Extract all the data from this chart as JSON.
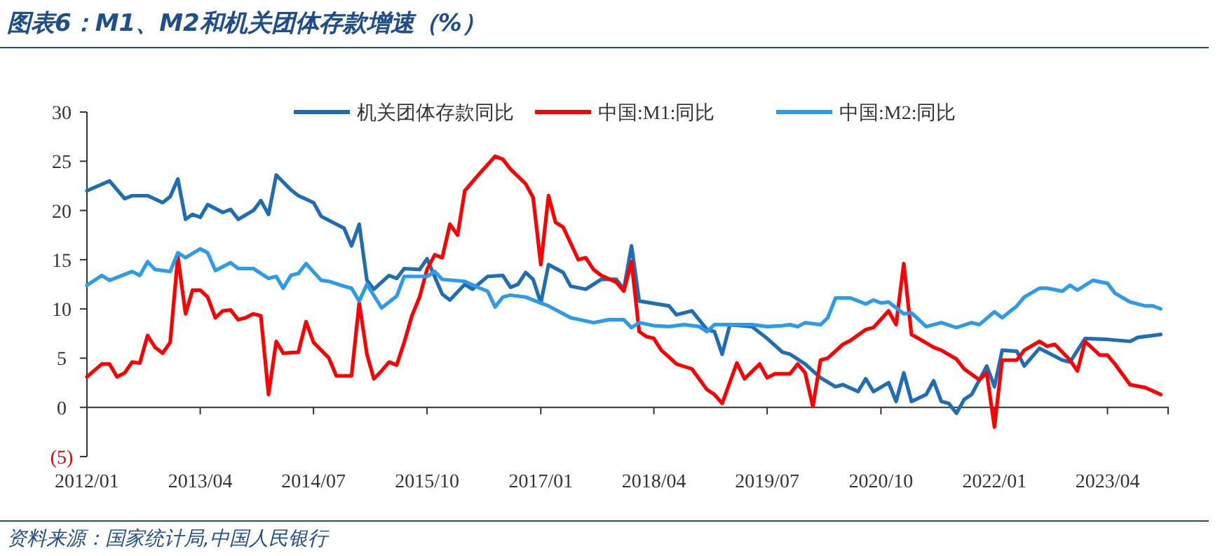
{
  "chart_data": {
    "type": "line",
    "title": "图表6：M1、M2和机关团体存款增速（%）",
    "annotations": [
      "资料来源：国家统计局,中国人民银行"
    ],
    "xlim": [
      "2012-01",
      "2023-12"
    ],
    "xticks": [
      {
        "value": "2012-01",
        "label": "2012/01"
      },
      {
        "value": "2013-04",
        "label": "2013/04"
      },
      {
        "value": "2014-07",
        "label": "2014/07"
      },
      {
        "value": "2015-10",
        "label": "2015/10"
      },
      {
        "value": "2017-01",
        "label": "2017/01"
      },
      {
        "value": "2018-04",
        "label": "2018/04"
      },
      {
        "value": "2019-07",
        "label": "2019/07"
      },
      {
        "value": "2020-10",
        "label": "2020/10"
      },
      {
        "value": "2022-01",
        "label": "2022/01"
      },
      {
        "value": "2023-04",
        "label": "2023/04"
      }
    ],
    "ylim": [
      -5,
      30
    ],
    "yticks": [
      {
        "value": -5,
        "label": "(5)"
      },
      0,
      5,
      10,
      15,
      20,
      25,
      30
    ],
    "legend": "top",
    "grid": false,
    "marker": "none",
    "line_style": "solid",
    "series": [
      {
        "name": "机关团体存款同比",
        "color": "#1f6db4",
        "x": [
          "2012-01",
          "2012-04",
          "2012-06",
          "2012-07",
          "2012-09",
          "2012-11",
          "2012-12",
          "2013-01",
          "2013-02",
          "2013-03",
          "2013-04",
          "2013-05",
          "2013-07",
          "2013-08",
          "2013-09",
          "2013-11",
          "2013-12",
          "2014-01",
          "2014-02",
          "2014-04",
          "2014-05",
          "2014-07",
          "2014-08",
          "2014-11",
          "2014-12",
          "2015-01",
          "2015-02",
          "2015-03",
          "2015-05",
          "2015-06",
          "2015-07",
          "2015-09",
          "2015-10",
          "2015-12",
          "2016-01",
          "2016-03",
          "2016-04",
          "2016-06",
          "2016-08",
          "2016-09",
          "2016-10",
          "2016-11",
          "2016-12",
          "2017-01",
          "2017-02",
          "2017-04",
          "2017-05",
          "2017-07",
          "2017-09",
          "2017-11",
          "2017-12",
          "2018-01",
          "2018-02",
          "2018-06",
          "2018-07",
          "2018-09",
          "2018-11",
          "2018-12",
          "2019-01",
          "2019-02",
          "2019-05",
          "2019-07",
          "2019-09",
          "2019-10",
          "2019-12",
          "2020-02",
          "2020-04",
          "2020-05",
          "2020-07",
          "2020-08",
          "2020-09",
          "2020-11",
          "2020-12",
          "2021-01",
          "2021-02",
          "2021-04",
          "2021-05",
          "2021-06",
          "2021-07",
          "2021-08",
          "2021-09",
          "2021-10",
          "2021-12",
          "2022-01",
          "2022-02",
          "2022-04",
          "2022-05",
          "2022-07",
          "2022-10",
          "2022-11",
          "2023-01",
          "2023-04",
          "2023-07",
          "2023-08",
          "2023-11"
        ],
        "values": [
          22.0,
          23.0,
          21.2,
          21.5,
          21.5,
          20.8,
          21.4,
          23.2,
          19.1,
          19.6,
          19.3,
          20.6,
          19.8,
          20.1,
          19.1,
          20.0,
          21.0,
          19.6,
          23.6,
          22.1,
          21.5,
          20.8,
          19.4,
          18.2,
          16.4,
          18.6,
          12.9,
          12.0,
          13.4,
          13.1,
          14.1,
          14.0,
          15.1,
          11.5,
          10.9,
          12.5,
          12.0,
          13.3,
          13.4,
          12.2,
          12.5,
          13.7,
          13.0,
          10.6,
          14.5,
          13.7,
          12.3,
          12.0,
          13.0,
          13.0,
          12.0,
          16.4,
          10.8,
          10.3,
          9.4,
          9.8,
          7.9,
          7.7,
          5.4,
          8.4,
          8.2,
          7.0,
          5.6,
          5.4,
          4.4,
          3.0,
          2.1,
          2.3,
          1.6,
          2.9,
          1.6,
          2.5,
          0.6,
          3.5,
          0.6,
          1.3,
          2.7,
          0.6,
          0.4,
          -0.6,
          0.8,
          1.3,
          4.2,
          2.1,
          5.8,
          5.7,
          4.2,
          6.0,
          4.8,
          4.6,
          7.0,
          6.9,
          6.7,
          7.1,
          7.4
        ]
      },
      {
        "name": "中国:M1:同比",
        "color": "#ff0000",
        "x": [
          "2012-01",
          "2012-03",
          "2012-04",
          "2012-05",
          "2012-06",
          "2012-07",
          "2012-08",
          "2012-09",
          "2012-10",
          "2012-11",
          "2012-12",
          "2013-01",
          "2013-02",
          "2013-03",
          "2013-04",
          "2013-05",
          "2013-06",
          "2013-07",
          "2013-08",
          "2013-09",
          "2013-10",
          "2013-11",
          "2013-12",
          "2014-01",
          "2014-02",
          "2014-03",
          "2014-05",
          "2014-06",
          "2014-07",
          "2014-09",
          "2014-10",
          "2014-12",
          "2015-01",
          "2015-02",
          "2015-03",
          "2015-04",
          "2015-05",
          "2015-06",
          "2015-07",
          "2015-08",
          "2015-09",
          "2015-10",
          "2015-11",
          "2015-12",
          "2016-01",
          "2016-02",
          "2016-03",
          "2016-05",
          "2016-07",
          "2016-08",
          "2016-09",
          "2016-11",
          "2016-12",
          "2017-01",
          "2017-02",
          "2017-03",
          "2017-04",
          "2017-06",
          "2017-07",
          "2017-08",
          "2017-09",
          "2017-11",
          "2017-12",
          "2018-01",
          "2018-02",
          "2018-03",
          "2018-04",
          "2018-05",
          "2018-06",
          "2018-07",
          "2018-09",
          "2018-11",
          "2018-12",
          "2019-01",
          "2019-03",
          "2019-04",
          "2019-06",
          "2019-07",
          "2019-08",
          "2019-10",
          "2019-11",
          "2019-12",
          "2020-01",
          "2020-02",
          "2020-03",
          "2020-05",
          "2020-06",
          "2020-08",
          "2020-09",
          "2020-11",
          "2020-12",
          "2021-01",
          "2021-02",
          "2021-03",
          "2021-05",
          "2021-06",
          "2021-08",
          "2021-09",
          "2021-11",
          "2021-12",
          "2022-01",
          "2022-02",
          "2022-04",
          "2022-05",
          "2022-07",
          "2022-08",
          "2022-09",
          "2022-11",
          "2022-12",
          "2023-01",
          "2023-03",
          "2023-04",
          "2023-05",
          "2023-07",
          "2023-09",
          "2023-11"
        ],
        "values": [
          3.1,
          4.4,
          4.4,
          3.1,
          3.5,
          4.6,
          4.5,
          7.3,
          6.1,
          5.5,
          6.6,
          15.3,
          9.5,
          11.9,
          11.9,
          11.2,
          9.1,
          9.8,
          9.9,
          8.9,
          9.1,
          9.5,
          9.3,
          1.3,
          6.7,
          5.5,
          5.6,
          8.7,
          6.6,
          5.0,
          3.2,
          3.2,
          10.6,
          5.4,
          2.9,
          3.7,
          4.6,
          4.3,
          6.6,
          9.3,
          11.2,
          14.0,
          15.5,
          15.2,
          18.6,
          17.5,
          22.0,
          23.8,
          25.5,
          25.2,
          24.2,
          22.7,
          21.3,
          14.5,
          21.5,
          18.8,
          18.3,
          15.0,
          15.2,
          14.0,
          13.4,
          12.7,
          11.8,
          14.8,
          7.7,
          7.2,
          7.0,
          5.8,
          5.1,
          4.4,
          3.9,
          1.8,
          1.3,
          0.4,
          4.5,
          2.9,
          4.4,
          3.0,
          3.4,
          3.4,
          4.4,
          3.5,
          0.1,
          4.8,
          5.0,
          6.4,
          6.8,
          7.9,
          8.1,
          9.8,
          8.4,
          14.6,
          7.4,
          7.0,
          6.1,
          5.8,
          4.9,
          3.9,
          2.8,
          3.5,
          -2.0,
          4.8,
          4.8,
          5.8,
          6.7,
          6.2,
          6.4,
          4.8,
          3.7,
          6.7,
          5.3,
          5.3,
          4.4,
          2.3,
          2.0,
          1.3
        ]
      },
      {
        "name": "中国:M2:同比",
        "color": "#2e9bea",
        "x": [
          "2012-01",
          "2012-03",
          "2012-04",
          "2012-07",
          "2012-08",
          "2012-09",
          "2012-10",
          "2012-12",
          "2013-01",
          "2013-02",
          "2013-04",
          "2013-05",
          "2013-06",
          "2013-08",
          "2013-09",
          "2013-11",
          "2013-12",
          "2014-01",
          "2014-02",
          "2014-03",
          "2014-04",
          "2014-05",
          "2014-06",
          "2014-08",
          "2014-09",
          "2014-11",
          "2014-12",
          "2015-01",
          "2015-02",
          "2015-04",
          "2015-06",
          "2015-07",
          "2015-10",
          "2015-11",
          "2015-12",
          "2016-03",
          "2016-05",
          "2016-06",
          "2016-07",
          "2016-08",
          "2016-09",
          "2016-11",
          "2016-12",
          "2017-02",
          "2017-05",
          "2017-08",
          "2017-10",
          "2017-12",
          "2018-01",
          "2018-02",
          "2018-04",
          "2018-06",
          "2018-08",
          "2018-10",
          "2018-11",
          "2018-12",
          "2019-02",
          "2019-05",
          "2019-07",
          "2019-09",
          "2019-10",
          "2019-11",
          "2019-12",
          "2020-02",
          "2020-03",
          "2020-04",
          "2020-06",
          "2020-08",
          "2020-09",
          "2020-10",
          "2020-11",
          "2021-01",
          "2021-02",
          "2021-04",
          "2021-06",
          "2021-08",
          "2021-10",
          "2021-11",
          "2022-01",
          "2022-02",
          "2022-04",
          "2022-05",
          "2022-07",
          "2022-08",
          "2022-10",
          "2022-11",
          "2022-12",
          "2023-02",
          "2023-04",
          "2023-05",
          "2023-07",
          "2023-09",
          "2023-10",
          "2023-11"
        ],
        "values": [
          12.4,
          13.4,
          12.9,
          13.8,
          13.4,
          14.8,
          14.0,
          13.8,
          15.7,
          15.2,
          16.1,
          15.7,
          13.9,
          14.7,
          14.1,
          14.1,
          13.6,
          13.1,
          13.3,
          12.1,
          13.4,
          13.6,
          14.6,
          12.9,
          12.8,
          12.3,
          12.1,
          10.8,
          12.5,
          10.1,
          11.3,
          13.3,
          13.3,
          13.8,
          13.0,
          12.8,
          12.1,
          11.8,
          10.2,
          11.2,
          11.4,
          11.2,
          10.9,
          10.3,
          9.1,
          8.6,
          8.9,
          8.9,
          8.1,
          8.6,
          8.3,
          8.2,
          8.4,
          8.2,
          7.7,
          8.4,
          8.4,
          8.4,
          8.2,
          8.3,
          8.4,
          8.2,
          8.6,
          8.4,
          9.1,
          11.1,
          11.1,
          10.5,
          10.9,
          10.6,
          10.7,
          9.5,
          9.6,
          8.2,
          8.6,
          8.1,
          8.6,
          8.4,
          9.7,
          9.1,
          10.3,
          11.2,
          12.1,
          12.1,
          11.8,
          12.4,
          11.9,
          12.9,
          12.6,
          11.6,
          10.7,
          10.3,
          10.3,
          10.0
        ]
      }
    ]
  }
}
